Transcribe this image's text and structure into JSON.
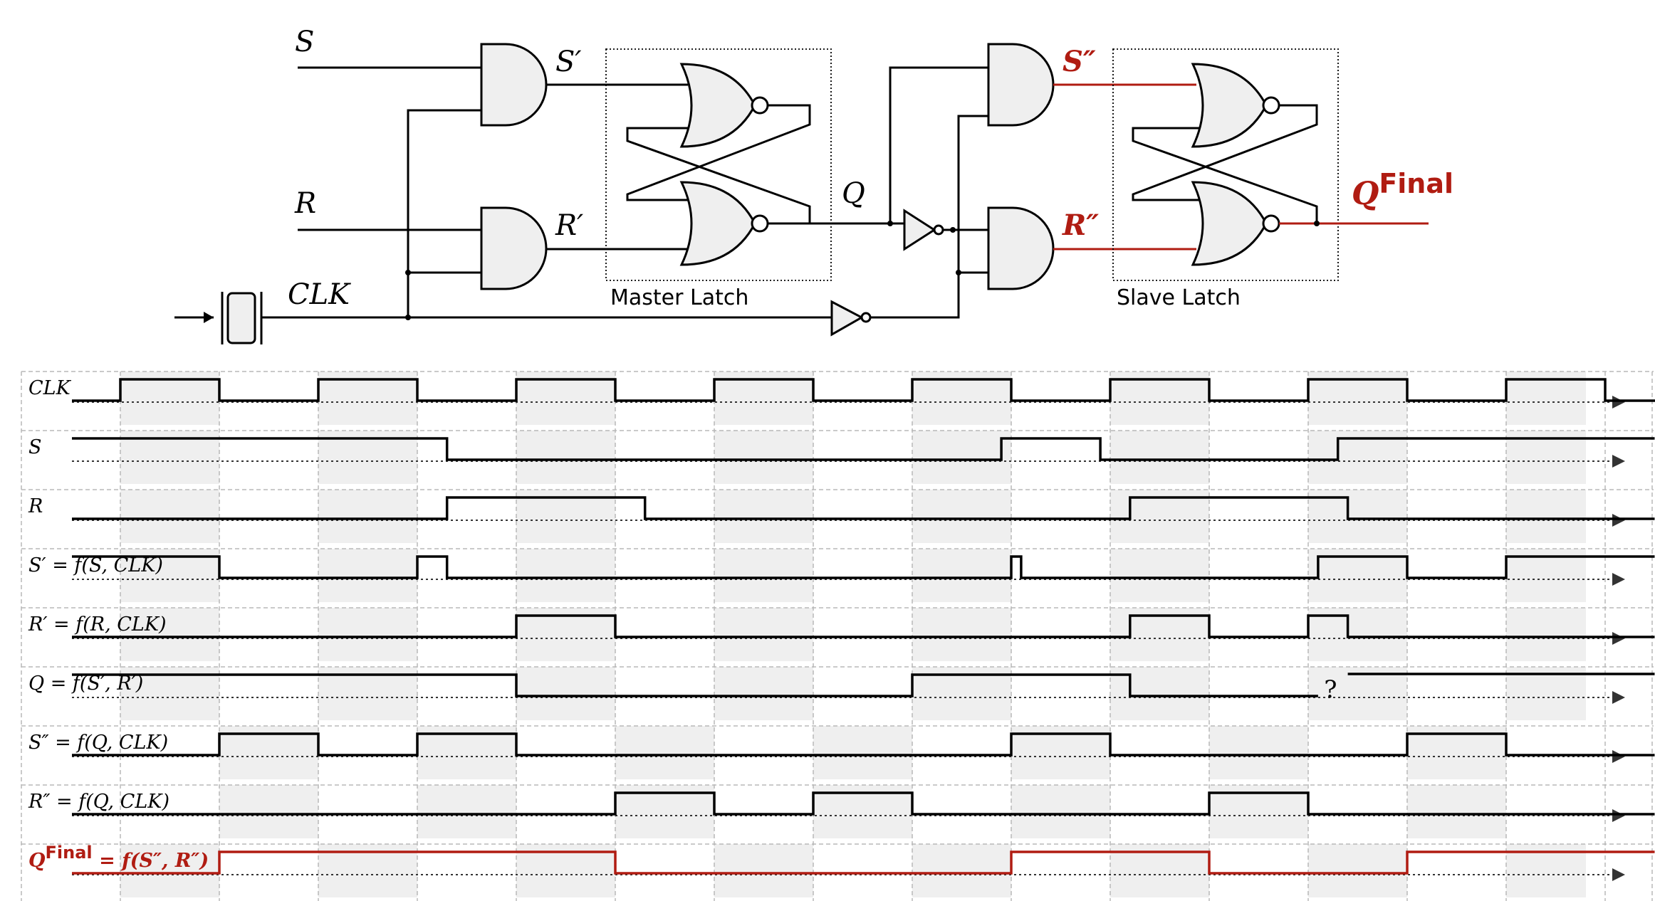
{
  "circuit": {
    "labels": {
      "S": "S",
      "R": "R",
      "CLK": "CLK",
      "S_prime": "S′",
      "R_prime": "R′",
      "Q": "Q",
      "S_dprime": "S″",
      "R_dprime": "R″",
      "Q_final_base": "Q",
      "Q_final_sup": "Final",
      "master_latch": "Master Latch",
      "slave_latch": "Slave Latch"
    },
    "colors": {
      "wire": "#000000",
      "highlight": "#b01c12",
      "gate_fill": "#efefef"
    }
  },
  "timing": {
    "colors": {
      "trace": "#000000",
      "final_trace": "#b01c12",
      "shade": "#efefef",
      "grid": "#b8b8b8"
    },
    "question_mark": "?",
    "signals": [
      {
        "label": "CLK",
        "transitions": [
          0.0,
          0.5,
          1.0,
          1.5,
          2.0,
          2.5,
          3.0,
          3.5,
          4.0,
          4.5,
          5.0,
          5.5,
          6.0,
          6.5,
          7.0,
          7.5
        ],
        "initial": 0,
        "end": 7.8
      },
      {
        "label": "S",
        "transitions": [
          1.65,
          4.45,
          4.95,
          6.15
        ],
        "initial": 1,
        "end": 7.75
      },
      {
        "label": "R",
        "transitions": [
          1.65,
          2.65,
          5.1,
          6.2
        ],
        "initial": 0,
        "end": 7.75
      },
      {
        "label": "S′ = f(S, CLK)",
        "transitions": [
          0.5,
          1.5,
          1.65,
          4.5,
          4.55,
          6.05,
          6.5,
          7.0
        ],
        "initial": 1,
        "end": 7.75
      },
      {
        "label": "R′ = f(R, CLK)",
        "transitions": [
          2.0,
          2.5,
          5.1,
          5.5,
          6.0,
          6.2
        ],
        "initial": 0,
        "end": 7.75
      },
      {
        "label": "Q = f(S′, R′)",
        "transitions": [
          2.0,
          4.0,
          5.1
        ],
        "initial": 1,
        "end": 6.05,
        "unknown_from": 6.2,
        "unknown_end": 7.75
      },
      {
        "label": "S″ = f(Q, CLK)",
        "transitions": [
          0.5,
          1.0,
          1.5,
          2.0,
          4.5,
          5.0,
          6.5,
          7.0
        ],
        "initial": 0,
        "end": 7.75
      },
      {
        "label": "R″ = f(Q, CLK)",
        "transitions": [
          2.5,
          3.0,
          3.5,
          4.0,
          5.5,
          6.0
        ],
        "initial": 0,
        "end": 7.75
      },
      {
        "label_base": "Q",
        "label_sup": "Final",
        "label_rest": " = f(S″, R″)",
        "transitions": [
          0.5,
          2.5,
          4.5,
          5.5,
          6.5
        ],
        "initial": 0,
        "end": 7.75,
        "final": true
      }
    ]
  }
}
